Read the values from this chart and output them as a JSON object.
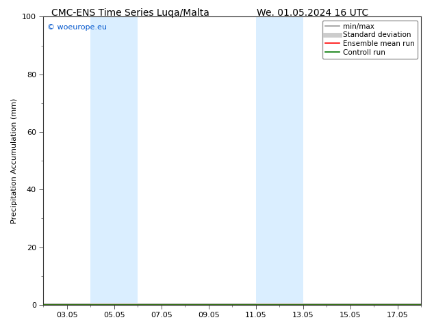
{
  "title_left": "CMC-ENS Time Series Luqa/Malta",
  "title_right": "We. 01.05.2024 16 UTC",
  "ylabel": "Precipitation Accumulation (mm)",
  "watermark": "© woeurope.eu",
  "ylim": [
    0,
    100
  ],
  "xlim_start": 2,
  "xlim_end": 18,
  "xtick_labels": [
    "03.05",
    "05.05",
    "07.05",
    "09.05",
    "11.05",
    "13.05",
    "15.05",
    "17.05"
  ],
  "xtick_positions": [
    3,
    5,
    7,
    9,
    11,
    13,
    15,
    17
  ],
  "ytick_positions": [
    0,
    20,
    40,
    60,
    80,
    100
  ],
  "shaded_bands": [
    {
      "xmin": 4.0,
      "xmax": 6.0
    },
    {
      "xmin": 11.0,
      "xmax": 13.0
    }
  ],
  "band_color": "#daeeff",
  "legend_entries": [
    {
      "label": "min/max",
      "color": "#999999",
      "lw": 1.2
    },
    {
      "label": "Standard deviation",
      "color": "#cccccc",
      "lw": 5
    },
    {
      "label": "Ensemble mean run",
      "color": "#ff0000",
      "lw": 1.2
    },
    {
      "label": "Controll run",
      "color": "#007700",
      "lw": 1.2
    }
  ],
  "watermark_color": "#0055cc",
  "title_fontsize": 10,
  "axis_fontsize": 8,
  "tick_fontsize": 8,
  "legend_fontsize": 7.5,
  "background_color": "#ffffff"
}
